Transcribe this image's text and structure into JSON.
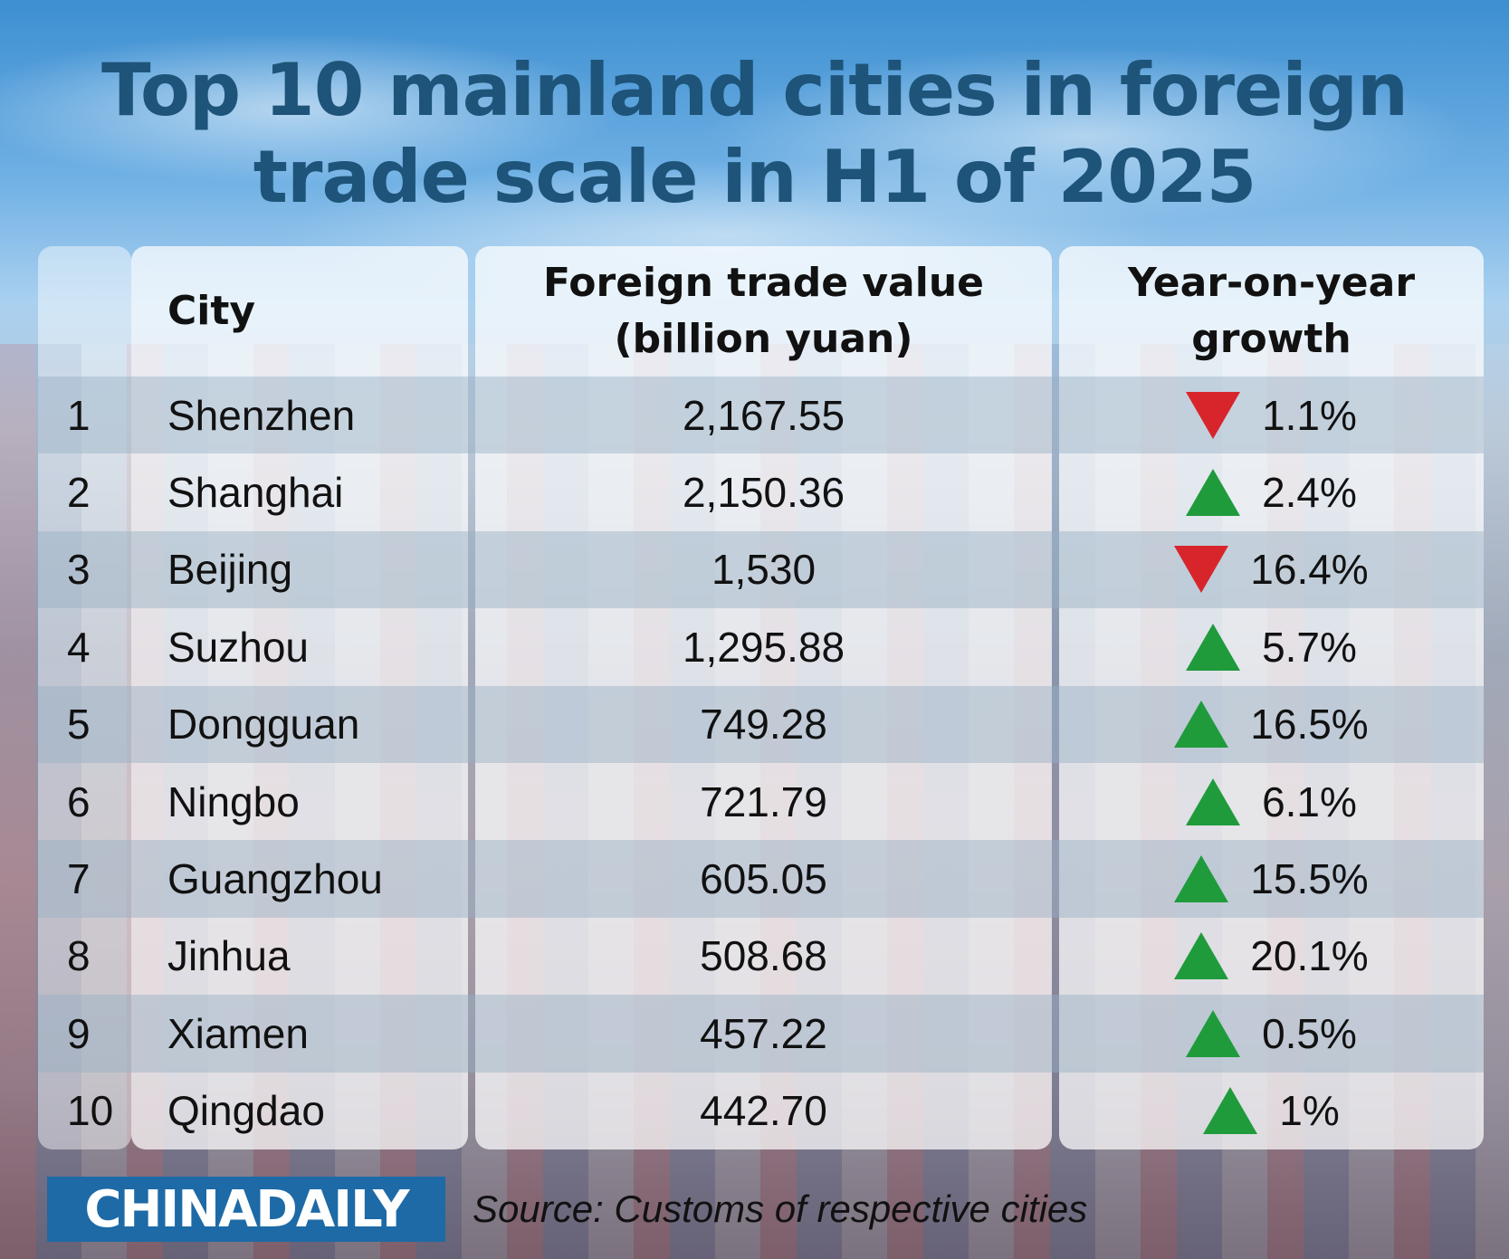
{
  "title": "Top 10 mainland cities in foreign trade scale in H1 of 2025",
  "colors": {
    "up": "#1f9b3c",
    "down": "#d7252b",
    "title": "#1e5479",
    "logo_bg": "#1d6aa6"
  },
  "header": {
    "rank": "",
    "city": "City",
    "value": "Foreign trade value (billion yuan)",
    "growth": "Year-on-year growth"
  },
  "footer": {
    "logo": "CHINADAILY",
    "source": "Source: Customs of respective cities"
  },
  "chart_data": {
    "type": "table",
    "title": "Top 10 mainland cities in foreign trade scale in H1 of 2025",
    "columns": [
      "",
      "City",
      "Foreign trade value (billion yuan)",
      "Year-on-year growth"
    ],
    "rows": [
      {
        "rank": "1",
        "city": "Shenzhen",
        "value": "2,167.55",
        "growth": "1.1%",
        "direction": "down"
      },
      {
        "rank": "2",
        "city": "Shanghai",
        "value": "2,150.36",
        "growth": "2.4%",
        "direction": "up"
      },
      {
        "rank": "3",
        "city": "Beijing",
        "value": "1,530",
        "growth": "16.4%",
        "direction": "down"
      },
      {
        "rank": "4",
        "city": "Suzhou",
        "value": "1,295.88",
        "growth": "5.7%",
        "direction": "up"
      },
      {
        "rank": "5",
        "city": "Dongguan",
        "value": "749.28",
        "growth": "16.5%",
        "direction": "up"
      },
      {
        "rank": "6",
        "city": "Ningbo",
        "value": "721.79",
        "growth": "6.1%",
        "direction": "up"
      },
      {
        "rank": "7",
        "city": "Guangzhou",
        "value": "605.05",
        "growth": "15.5%",
        "direction": "up"
      },
      {
        "rank": "8",
        "city": "Jinhua",
        "value": "508.68",
        "growth": "20.1%",
        "direction": "up"
      },
      {
        "rank": "9",
        "city": "Xiamen",
        "value": "457.22",
        "growth": "0.5%",
        "direction": "up"
      },
      {
        "rank": "10",
        "city": "Qingdao",
        "value": "442.70",
        "growth": "1%",
        "direction": "up"
      }
    ]
  }
}
